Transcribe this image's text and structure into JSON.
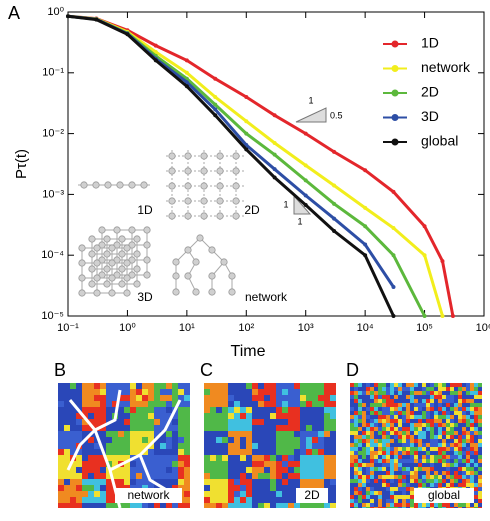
{
  "panel_label": "A",
  "chart_data": {
    "type": "line",
    "x_label": "Time",
    "y_label": "Pτ(t)",
    "log_x": true,
    "log_y": true,
    "legend_position": "top-right",
    "xlim": [
      0.1,
      1000000
    ],
    "ylim": [
      1e-05,
      1
    ],
    "xticks": [
      {
        "value": 0.1,
        "label": "10⁻¹"
      },
      {
        "value": 1,
        "label": "10⁰"
      },
      {
        "value": 10,
        "label": "10¹"
      },
      {
        "value": 100,
        "label": "10²"
      },
      {
        "value": 1000,
        "label": "10³"
      },
      {
        "value": 10000,
        "label": "10⁴"
      },
      {
        "value": 100000,
        "label": "10⁵"
      },
      {
        "value": 1000000,
        "label": "10⁶"
      }
    ],
    "yticks": [
      {
        "value": 1e-05,
        "label": "10⁻⁵"
      },
      {
        "value": 0.0001,
        "label": "10⁻⁴"
      },
      {
        "value": 0.001,
        "label": "10⁻³"
      },
      {
        "value": 0.01,
        "label": "10⁻²"
      },
      {
        "value": 0.1,
        "label": "10⁻¹"
      },
      {
        "value": 1,
        "label": "10⁰"
      }
    ],
    "x": [
      0.1,
      0.3,
      1,
      3,
      10,
      30,
      100,
      300,
      1000,
      3000,
      10000,
      30000,
      100000,
      200000,
      300000
    ],
    "series": [
      {
        "name": "1D",
        "color": "#e3262b",
        "values": [
          0.85,
          0.78,
          0.5,
          0.28,
          0.16,
          0.08,
          0.04,
          0.02,
          0.01,
          0.005,
          0.0025,
          0.0011,
          0.0003,
          8e-05,
          1e-05
        ]
      },
      {
        "name": "network",
        "color": "#f2ee1c",
        "values": [
          0.85,
          0.77,
          0.47,
          0.22,
          0.1,
          0.04,
          0.016,
          0.007,
          0.003,
          0.0014,
          0.0006,
          0.00028,
          0.0001,
          1e-05,
          null
        ]
      },
      {
        "name": "2D",
        "color": "#5cb83c",
        "values": [
          0.85,
          0.76,
          0.45,
          0.19,
          0.08,
          0.03,
          0.01,
          0.0045,
          0.0017,
          0.0007,
          0.0003,
          0.0001,
          1e-05,
          null,
          null
        ]
      },
      {
        "name": "3D",
        "color": "#2d4ea5",
        "values": [
          0.85,
          0.76,
          0.44,
          0.17,
          0.07,
          0.025,
          0.0065,
          0.0026,
          0.00096,
          0.0004,
          0.00015,
          3e-05,
          null,
          null,
          null
        ]
      },
      {
        "name": "global",
        "color": "#111111",
        "values": [
          0.85,
          0.75,
          0.43,
          0.16,
          0.06,
          0.02,
          0.0055,
          0.0019,
          0.00067,
          0.00025,
          0.0001,
          1e-05,
          null,
          null,
          null
        ]
      }
    ]
  },
  "slope_marks": [
    {
      "top": "1",
      "side": "0.5"
    },
    {
      "side": "1",
      "bottom": "1"
    }
  ],
  "insets": [
    "1D",
    "2D",
    "3D",
    "network"
  ],
  "panels": [
    {
      "letter": "B",
      "label": "network"
    },
    {
      "letter": "C",
      "label": "2D"
    },
    {
      "letter": "D",
      "label": "global"
    }
  ]
}
